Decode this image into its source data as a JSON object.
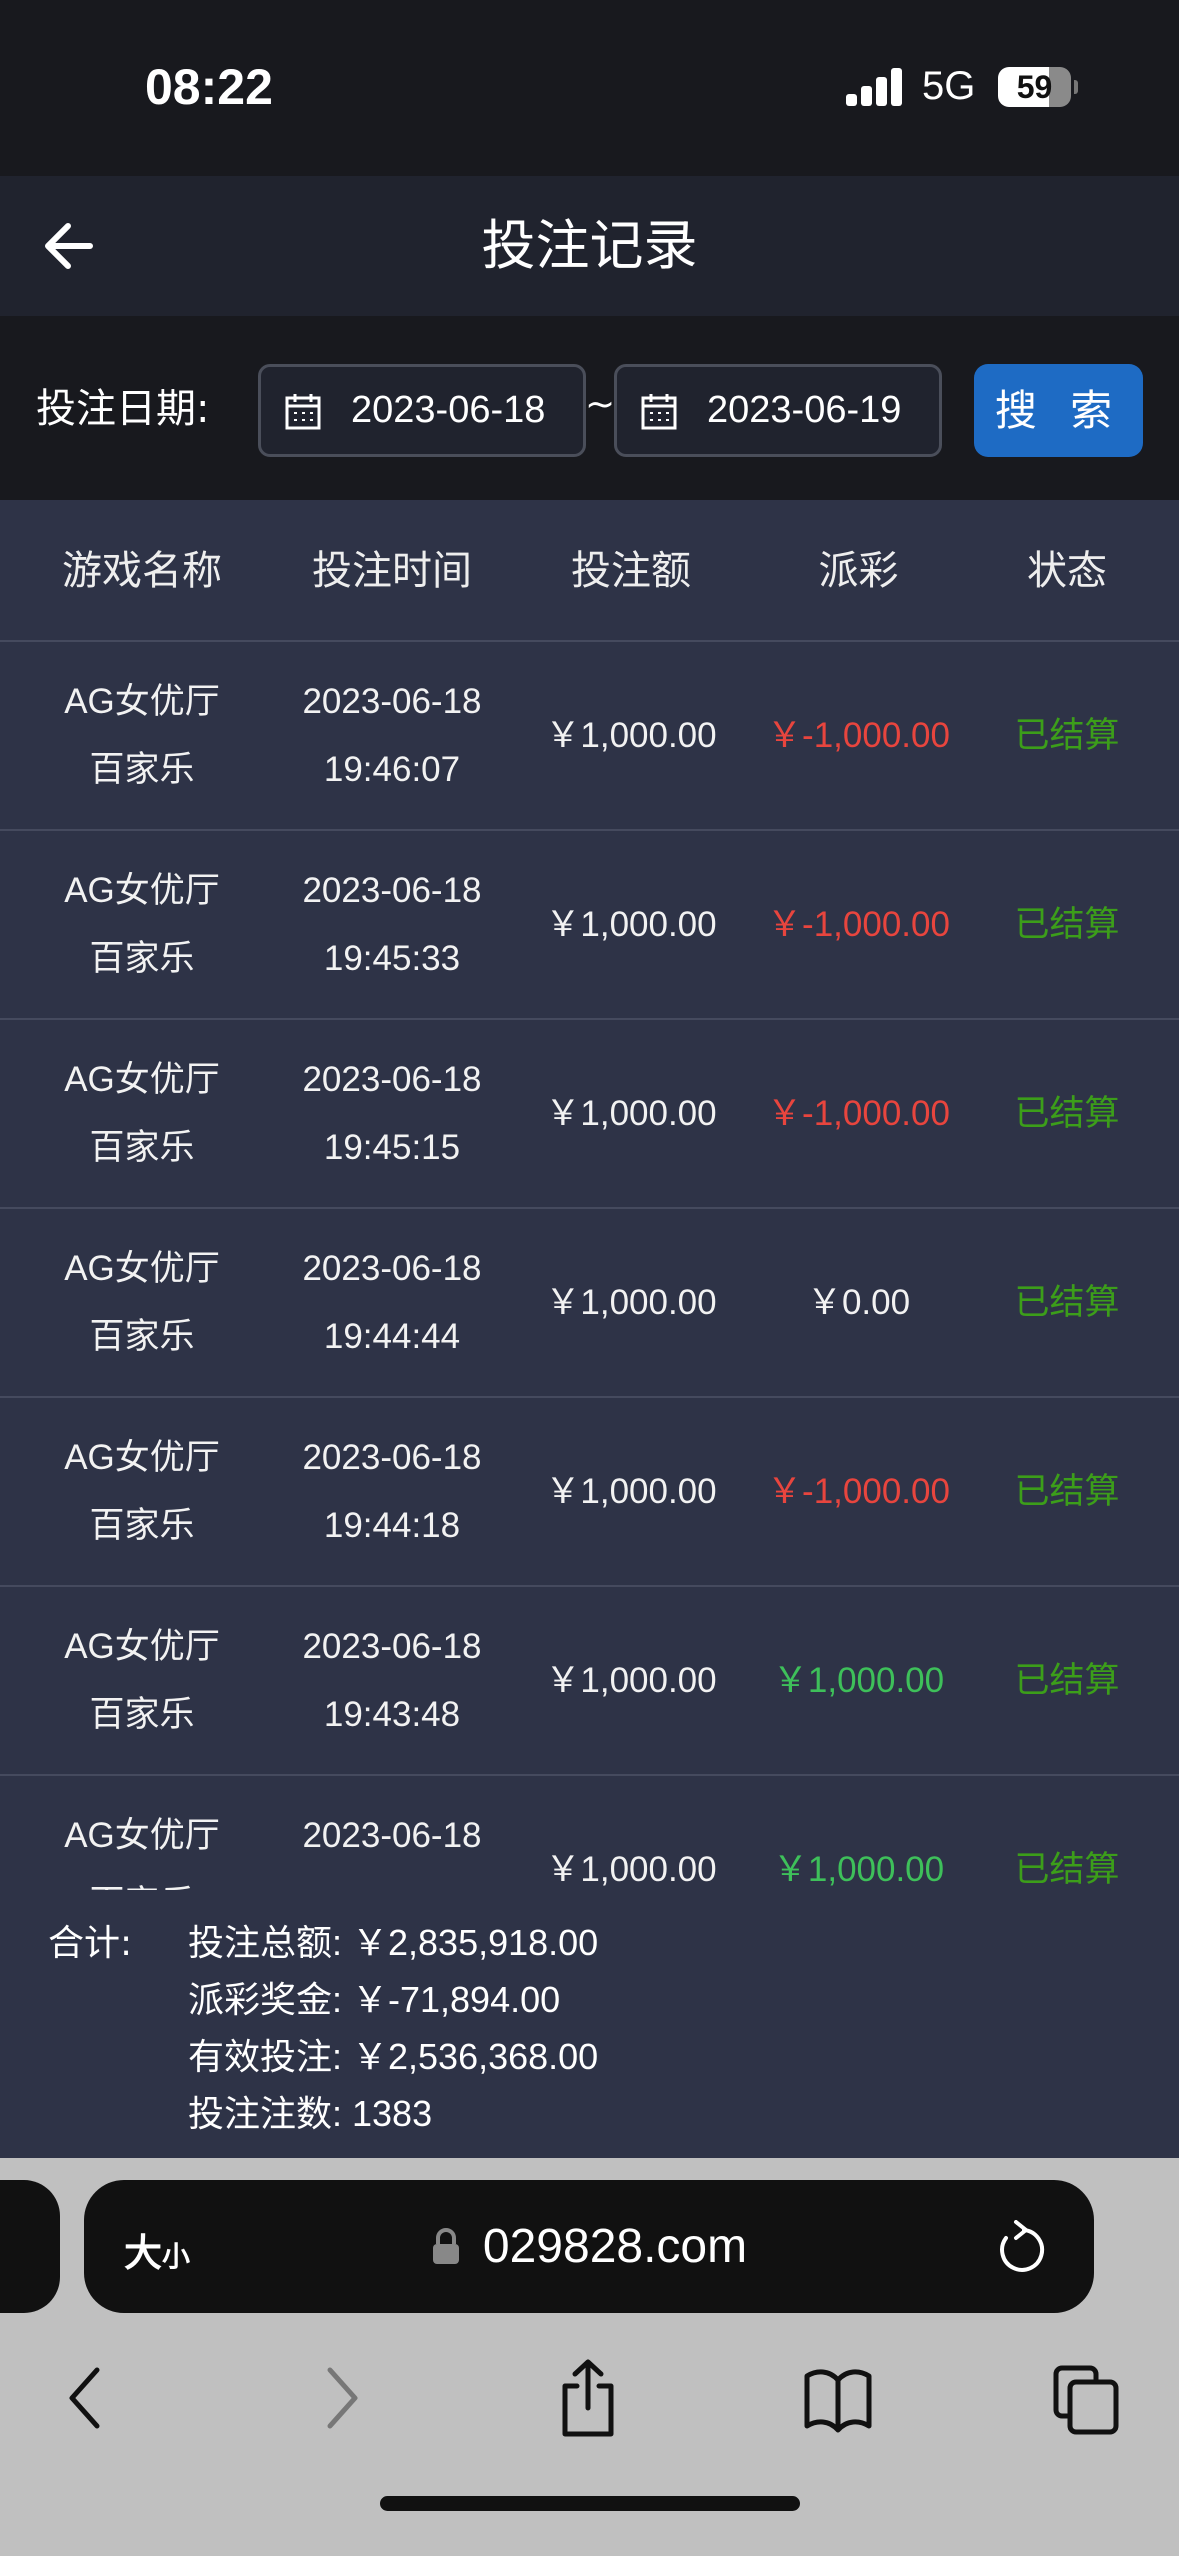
{
  "status_bar": {
    "time": "08:22",
    "network": "5G",
    "battery": "59"
  },
  "header": {
    "title": "投注记录"
  },
  "filter": {
    "label": "投注日期:",
    "start_date": "2023-06-18",
    "separator": "~",
    "end_date": "2023-06-19",
    "search_label": "搜 索"
  },
  "table": {
    "columns": [
      "游戏名称",
      "投注时间",
      "投注额",
      "派彩",
      "状态"
    ],
    "rows": [
      {
        "game1": "AG女优厅",
        "game2": "百家乐",
        "date": "2023-06-18",
        "time": "19:46:07",
        "bet": "￥1,000.00",
        "payout": "￥-1,000.00",
        "payout_type": "neg",
        "status": "已结算"
      },
      {
        "game1": "AG女优厅",
        "game2": "百家乐",
        "date": "2023-06-18",
        "time": "19:45:33",
        "bet": "￥1,000.00",
        "payout": "￥-1,000.00",
        "payout_type": "neg",
        "status": "已结算"
      },
      {
        "game1": "AG女优厅",
        "game2": "百家乐",
        "date": "2023-06-18",
        "time": "19:45:15",
        "bet": "￥1,000.00",
        "payout": "￥-1,000.00",
        "payout_type": "neg",
        "status": "已结算"
      },
      {
        "game1": "AG女优厅",
        "game2": "百家乐",
        "date": "2023-06-18",
        "time": "19:44:44",
        "bet": "￥1,000.00",
        "payout": "￥0.00",
        "payout_type": "zero",
        "status": "已结算"
      },
      {
        "game1": "AG女优厅",
        "game2": "百家乐",
        "date": "2023-06-18",
        "time": "19:44:18",
        "bet": "￥1,000.00",
        "payout": "￥-1,000.00",
        "payout_type": "neg",
        "status": "已结算"
      },
      {
        "game1": "AG女优厅",
        "game2": "百家乐",
        "date": "2023-06-18",
        "time": "19:43:48",
        "bet": "￥1,000.00",
        "payout": "￥1,000.00",
        "payout_type": "pos",
        "status": "已结算"
      },
      {
        "game1": "AG女优厅",
        "game2": "百家乐",
        "date": "2023-06-18",
        "time": "",
        "bet": "￥1,000.00",
        "payout": "￥1,000.00",
        "payout_type": "pos",
        "status": "已结算"
      }
    ]
  },
  "summary": {
    "label": "合计:",
    "total_bet": "投注总额:  ￥2,835,918.00",
    "payout": "派彩奖金:  ￥-71,894.00",
    "valid_bet": "有效投注:  ￥2,536,368.00",
    "count": "投注注数:  1383"
  },
  "browser": {
    "text_size": "大",
    "text_size_small": "小",
    "url": "029828.com"
  },
  "colors": {
    "negative": "#e8453e",
    "positive": "#3ec05a",
    "status": "#3c9e1a",
    "accent": "#1e6bc4"
  }
}
